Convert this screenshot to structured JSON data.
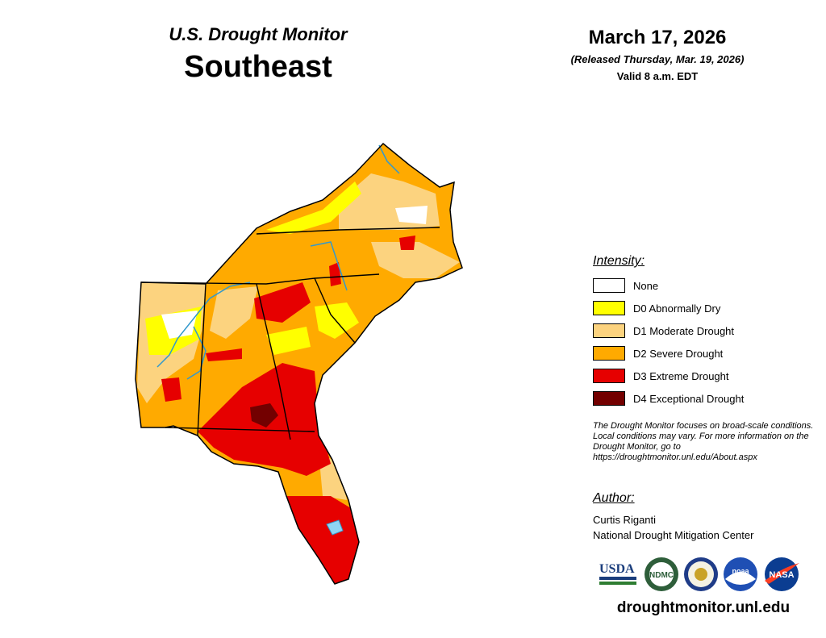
{
  "header": {
    "subtitle": "U.S. Drought Monitor",
    "region": "Southeast",
    "date": "March 17, 2026",
    "released": "(Released Thursday, Mar. 19, 2026)",
    "valid": "Valid 8 a.m. EDT"
  },
  "legend": {
    "title": "Intensity:",
    "items": [
      {
        "label": "None",
        "color": "#ffffff"
      },
      {
        "label": "D0 Abnormally Dry",
        "color": "#ffff00"
      },
      {
        "label": "D1 Moderate Drought",
        "color": "#fcd37f"
      },
      {
        "label": "D2 Severe Drought",
        "color": "#ffaa00"
      },
      {
        "label": "D3 Extreme Drought",
        "color": "#e60000"
      },
      {
        "label": "D4 Exceptional Drought",
        "color": "#730000"
      }
    ]
  },
  "note": "The Drought Monitor focuses on broad-scale conditions. Local conditions may vary. For more information on the Drought Monitor, go to https://droughtmonitor.unl.edu/About.aspx",
  "author": {
    "title": "Author:",
    "name": "Curtis Riganti",
    "org": "National Drought Mitigation Center"
  },
  "logos": {
    "usda": "USDA",
    "ndmc": "NDMC",
    "noaa": "noaa",
    "nasa": "NASA"
  },
  "footer": {
    "url": "droughtmonitor.unl.edu"
  }
}
